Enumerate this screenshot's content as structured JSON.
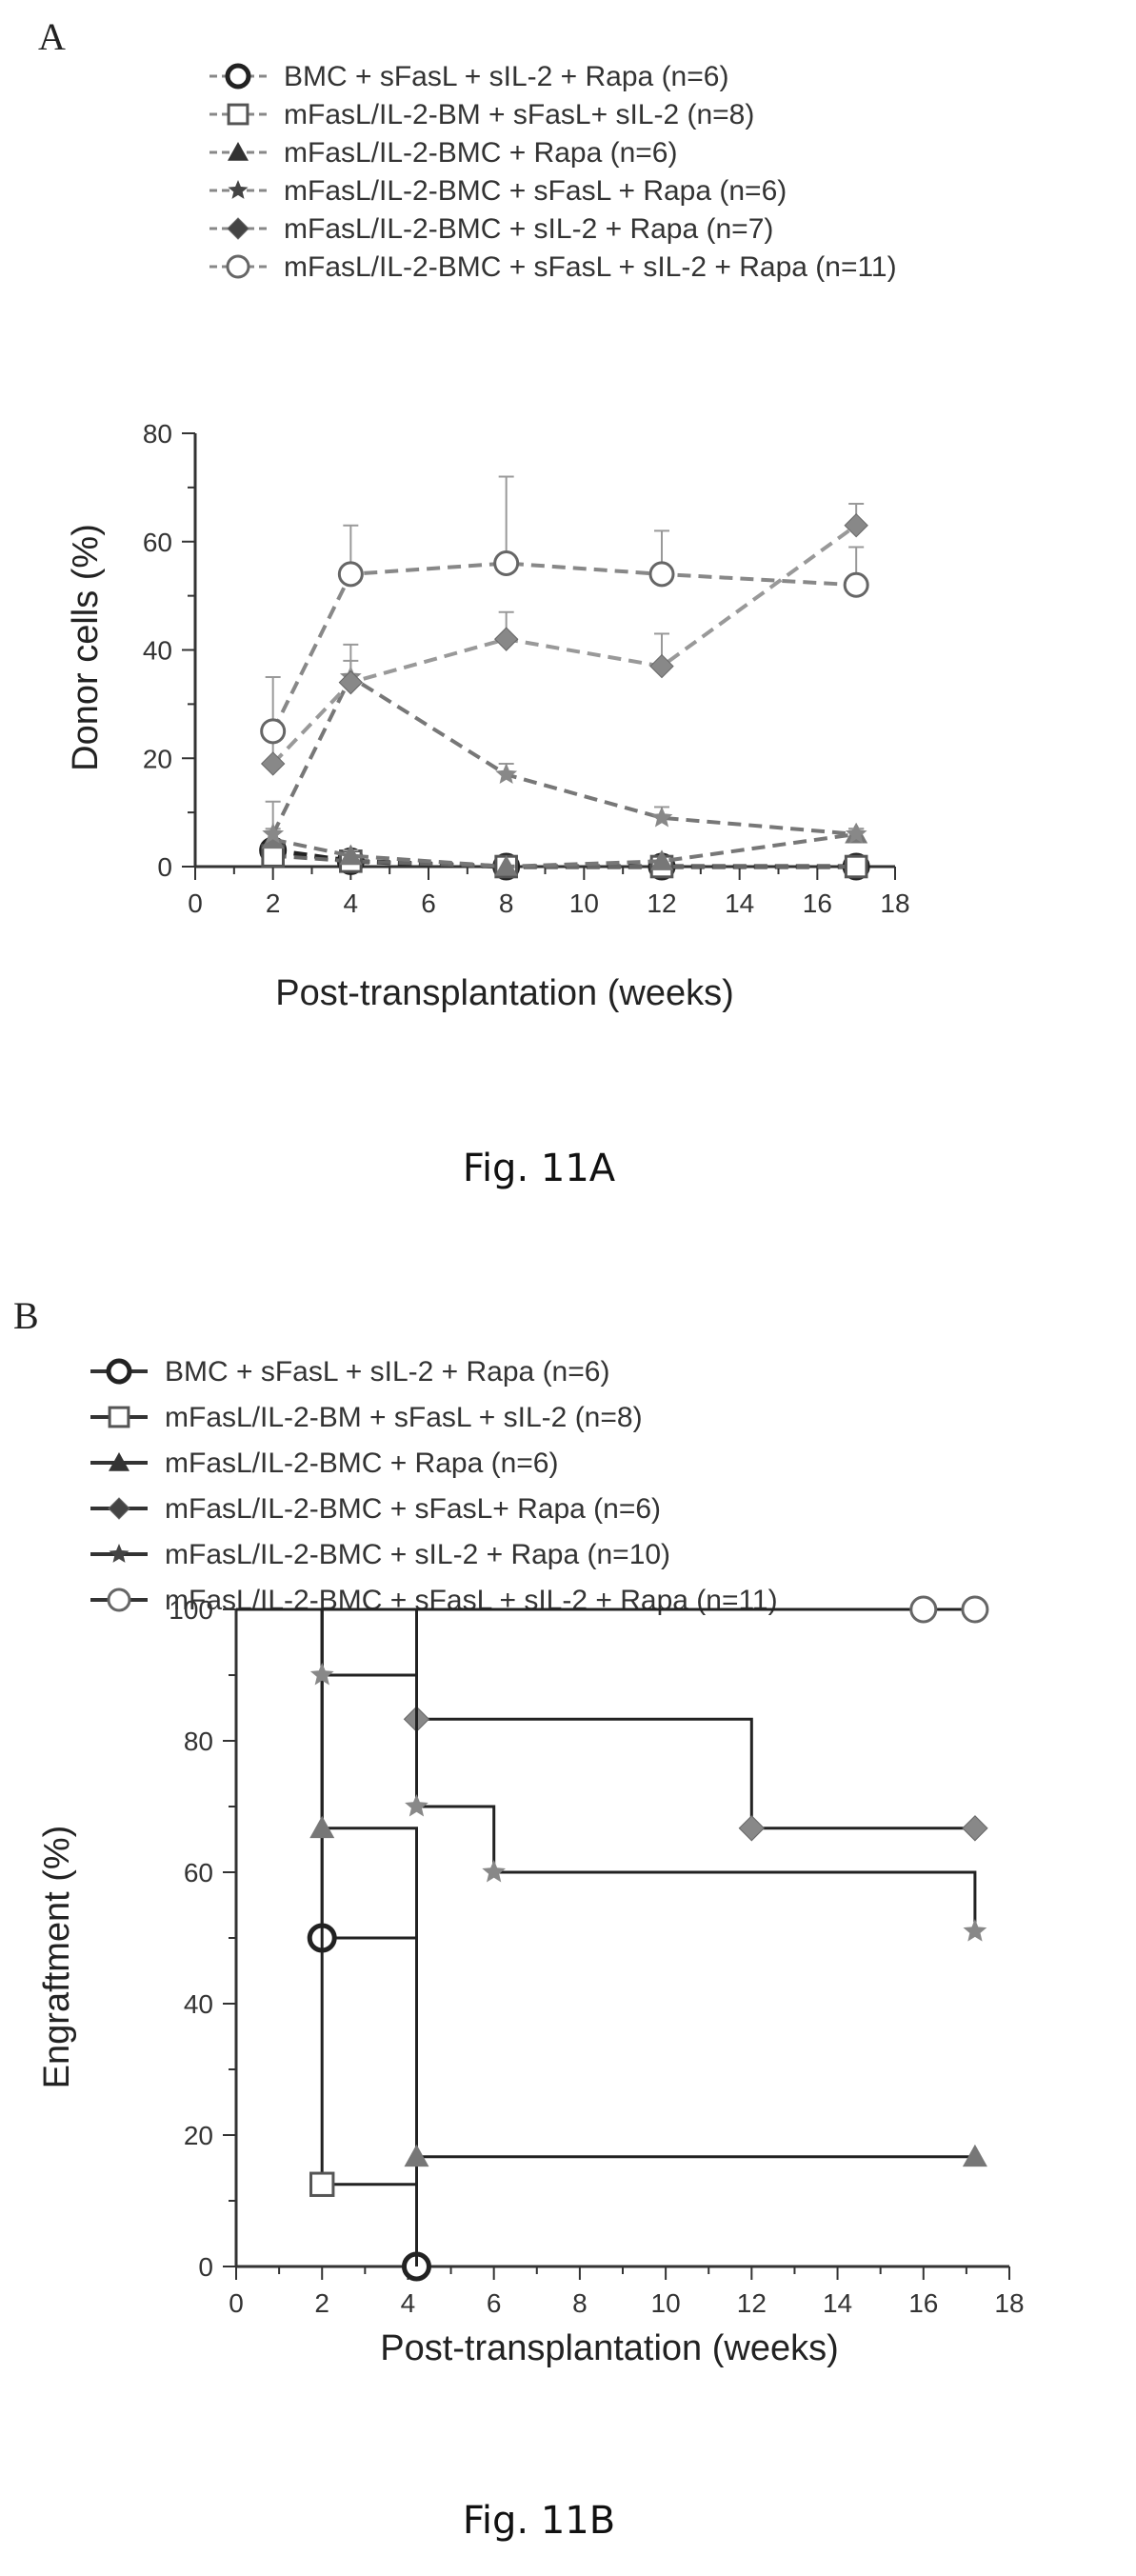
{
  "chart_data": [
    {
      "type": "line",
      "panel_label": "A",
      "caption": "Fig. 11A",
      "xlabel": "Post-transplantation (weeks)",
      "ylabel": "Donor cells (%)",
      "xlim": [
        0,
        18
      ],
      "ylim": [
        0,
        80
      ],
      "xticks": [
        0,
        2,
        4,
        6,
        8,
        10,
        12,
        14,
        16,
        18
      ],
      "yticks": [
        0,
        20,
        40,
        60,
        80
      ],
      "legend_position": "top",
      "series": [
        {
          "name": "BMC + sFasL + sIL-2 + Rapa (n=6)",
          "marker": "circle-open-bold",
          "x": [
            2,
            4,
            8,
            12,
            17
          ],
          "values": [
            3,
            1,
            0,
            0,
            0
          ],
          "errors": [
            1,
            1,
            0,
            0,
            0
          ]
        },
        {
          "name": "mFasL/IL-2-BM + sFasL+ sIL-2 (n=8)",
          "marker": "square-open",
          "x": [
            2,
            4,
            8,
            12,
            17
          ],
          "values": [
            2,
            1,
            0,
            0,
            0
          ],
          "errors": [
            1,
            0,
            0,
            0,
            0
          ]
        },
        {
          "name": "mFasL/IL-2-BMC + Rapa (n=6)",
          "marker": "triangle",
          "x": [
            2,
            4,
            8,
            12,
            17
          ],
          "values": [
            5,
            2,
            0,
            1,
            6
          ],
          "errors": [
            2,
            1,
            0,
            0,
            1
          ]
        },
        {
          "name": "mFasL/IL-2-BMC + sFasL + Rapa (n=6)",
          "marker": "star",
          "x": [
            2,
            4,
            8,
            12,
            17
          ],
          "values": [
            6,
            35,
            17,
            9,
            6
          ],
          "errors": [
            6,
            3,
            2,
            2,
            1
          ]
        },
        {
          "name": "mFasL/IL-2-BMC + sIL-2 + Rapa (n=7)",
          "marker": "diamond",
          "x": [
            2,
            4,
            8,
            12,
            17
          ],
          "values": [
            19,
            34,
            42,
            37,
            63
          ],
          "errors": [
            5,
            7,
            5,
            6,
            4
          ]
        },
        {
          "name": "mFasL/IL-2-BMC + sFasL + sIL-2 + Rapa (n=11)",
          "marker": "circle-open",
          "x": [
            2,
            4,
            8,
            12,
            17
          ],
          "values": [
            25,
            54,
            56,
            54,
            52
          ],
          "errors": [
            10,
            9,
            16,
            8,
            7
          ]
        }
      ]
    },
    {
      "type": "line",
      "panel_label": "B",
      "caption": "Fig. 11B",
      "xlabel": "Post-transplantation (weeks)",
      "ylabel": "Engraftment (%)",
      "xlim": [
        0,
        18
      ],
      "ylim": [
        0,
        100
      ],
      "xticks": [
        0,
        2,
        4,
        6,
        8,
        10,
        12,
        14,
        16,
        18
      ],
      "yticks": [
        0,
        20,
        40,
        60,
        80,
        100
      ],
      "legend_position": "top",
      "step": true,
      "series": [
        {
          "name": "BMC + sFasL + sIL-2 + Rapa (n=6)",
          "marker": "circle-open-bold",
          "steps": [
            [
              0,
              100
            ],
            [
              2,
              50
            ],
            [
              4.2,
              0
            ]
          ],
          "x": [
            2,
            4.2
          ],
          "values": [
            50,
            0
          ]
        },
        {
          "name": "mFasL/IL-2-BM + sFasL + sIL-2 (n=8)",
          "marker": "square-open",
          "steps": [
            [
              0,
              100
            ],
            [
              2,
              12.5
            ],
            [
              4.2,
              0
            ]
          ],
          "x": [
            2
          ],
          "values": [
            12.5
          ]
        },
        {
          "name": "mFasL/IL-2-BMC + Rapa (n=6)",
          "marker": "triangle",
          "steps": [
            [
              0,
              100
            ],
            [
              2,
              66.7
            ],
            [
              4.2,
              16.7
            ],
            [
              17.2,
              16.7
            ]
          ],
          "x": [
            2,
            4.2,
            17.2
          ],
          "values": [
            66.7,
            16.7,
            16.7
          ]
        },
        {
          "name": "mFasL/IL-2-BMC + sFasL+ Rapa (n=6)",
          "marker": "diamond",
          "steps": [
            [
              0,
              100
            ],
            [
              4.2,
              83.3
            ],
            [
              12,
              66.7
            ],
            [
              17.2,
              66.7
            ]
          ],
          "x": [
            4.2,
            12,
            17.2
          ],
          "values": [
            83.3,
            66.7,
            66.7
          ]
        },
        {
          "name": "mFasL/IL-2-BMC + sIL-2 + Rapa (n=10)",
          "marker": "star",
          "steps": [
            [
              0,
              100
            ],
            [
              2,
              90
            ],
            [
              4.2,
              70
            ],
            [
              6,
              60
            ],
            [
              17.2,
              51
            ]
          ],
          "x": [
            2,
            4.2,
            6,
            17.2
          ],
          "values": [
            90,
            70,
            60,
            51
          ]
        },
        {
          "name": "mFasL/IL-2-BMC + sFasL + sIL-2 + Rapa (n=11)",
          "marker": "circle-open",
          "steps": [
            [
              0,
              100
            ],
            [
              17.2,
              100
            ]
          ],
          "x": [
            16,
            17.2
          ],
          "values": [
            100,
            100
          ]
        }
      ]
    }
  ]
}
